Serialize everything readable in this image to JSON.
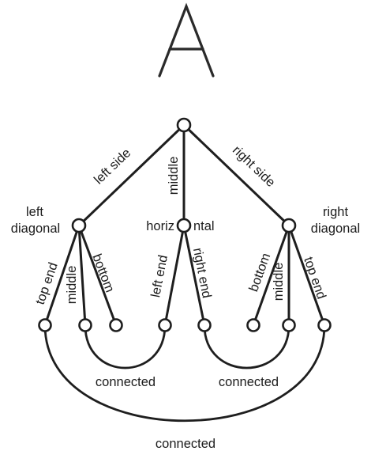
{
  "title_letter": "A",
  "root": {
    "edges": {
      "left": "left side",
      "middle": "middle",
      "right": "right side"
    }
  },
  "left_diagonal": {
    "label_line1": "left",
    "label_line2": "diagonal",
    "edges": [
      "top end",
      "middle",
      "bottom"
    ]
  },
  "horizontal": {
    "label_left": "horiz",
    "label_right": "ntal",
    "edges": [
      "left end",
      "right end"
    ]
  },
  "right_diagonal": {
    "label_line1": "right",
    "label_line2": "diagonal",
    "edges": [
      "bottom",
      "middle",
      "top end"
    ]
  },
  "connections": {
    "inner_left": "connected",
    "inner_right": "connected",
    "outer": "connected"
  }
}
